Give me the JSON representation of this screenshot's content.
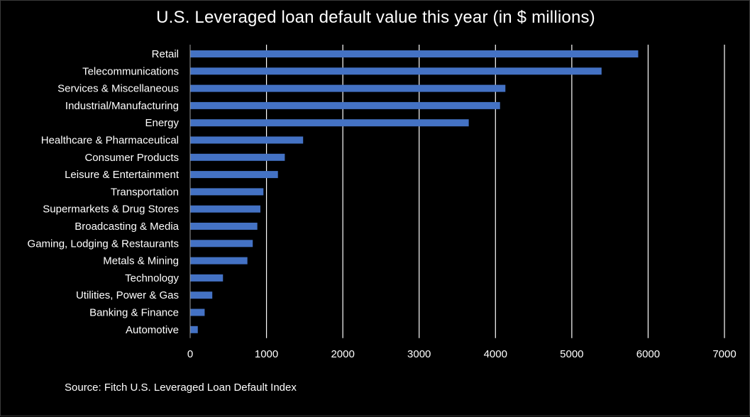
{
  "chart_data": {
    "type": "bar",
    "orientation": "horizontal",
    "title": "U.S. Leveraged loan  default value this year (in $ millions)",
    "source": "Source: Fitch U.S. Leveraged Loan Default Index",
    "xlabel": "",
    "ylabel": "",
    "xlim": [
      0,
      7000
    ],
    "x_ticks": [
      0,
      1000,
      2000,
      3000,
      4000,
      5000,
      6000,
      7000
    ],
    "grid": "vertical",
    "legend": "none",
    "categories": [
      "Retail",
      "Telecommunications",
      "Services & Miscellaneous",
      "Industrial/Manufacturing",
      "Energy",
      "Healthcare & Pharmaceutical",
      "Consumer Products",
      "Leisure & Entertainment",
      "Transportation",
      "Supermarkets & Drug Stores",
      "Broadcasting & Media",
      "Gaming, Lodging & Restaurants",
      "Metals & Mining",
      "Technology",
      "Utilities, Power & Gas",
      "Banking & Finance",
      "Automotive"
    ],
    "values": [
      5870,
      5390,
      4130,
      4060,
      3650,
      1480,
      1240,
      1150,
      960,
      920,
      880,
      820,
      750,
      430,
      290,
      190,
      100
    ],
    "colors": {
      "bar": "#4472C4",
      "background": "#000000",
      "grid": "#ffffff",
      "text": "#ffffff"
    }
  }
}
